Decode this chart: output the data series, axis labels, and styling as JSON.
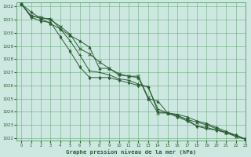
{
  "title": "Graphe pression niveau de la mer (hPa)",
  "bg_color": "#cce8e0",
  "grid_color": "#5a9a6a",
  "line_color": "#2d5e35",
  "xlim": [
    -0.5,
    23
  ],
  "ylim": [
    1021.8,
    1032.3
  ],
  "yticks": [
    1022,
    1023,
    1024,
    1025,
    1026,
    1027,
    1028,
    1029,
    1030,
    1031,
    1032
  ],
  "xticks": [
    0,
    1,
    2,
    3,
    4,
    5,
    6,
    7,
    8,
    9,
    10,
    11,
    12,
    13,
    14,
    15,
    16,
    17,
    18,
    19,
    20,
    21,
    22,
    23
  ],
  "series": [
    [
      1032.2,
      1031.6,
      1031.1,
      1030.7,
      1030.3,
      1029.8,
      1029.4,
      1028.9,
      1027.3,
      1027.3,
      1026.8,
      1026.7,
      1026.6,
      1025.0,
      1024.8,
      1023.9,
      1023.8,
      1023.6,
      1023.3,
      1023.1,
      1022.8,
      1022.5,
      1022.2,
      1021.9
    ],
    [
      1032.2,
      1031.3,
      1031.2,
      1031.0,
      1030.5,
      1029.9,
      1028.8,
      1028.4,
      1027.8,
      1027.3,
      1026.9,
      1026.7,
      1026.7,
      1025.1,
      1023.9,
      1023.9,
      1023.7,
      1023.4,
      1023.2,
      1023.0,
      1022.7,
      1022.4,
      1022.1,
      1021.9
    ],
    [
      1032.2,
      1031.3,
      1031.1,
      1031.1,
      1030.3,
      1029.4,
      1028.3,
      1027.1,
      1027.0,
      1026.8,
      1026.5,
      1026.4,
      1026.1,
      1025.9,
      1024.2,
      1023.9,
      1023.7,
      1023.4,
      1022.9,
      1022.7,
      1022.6,
      1022.4,
      1022.2,
      1021.9
    ],
    [
      1032.2,
      1031.2,
      1030.9,
      1030.8,
      1029.7,
      1028.6,
      1027.4,
      1026.6,
      1026.6,
      1026.6,
      1026.4,
      1026.2,
      1026.0,
      1025.9,
      1024.0,
      1023.9,
      1023.6,
      1023.3,
      1022.9,
      1022.8,
      1022.6,
      1022.4,
      1022.2,
      1021.9
    ]
  ]
}
